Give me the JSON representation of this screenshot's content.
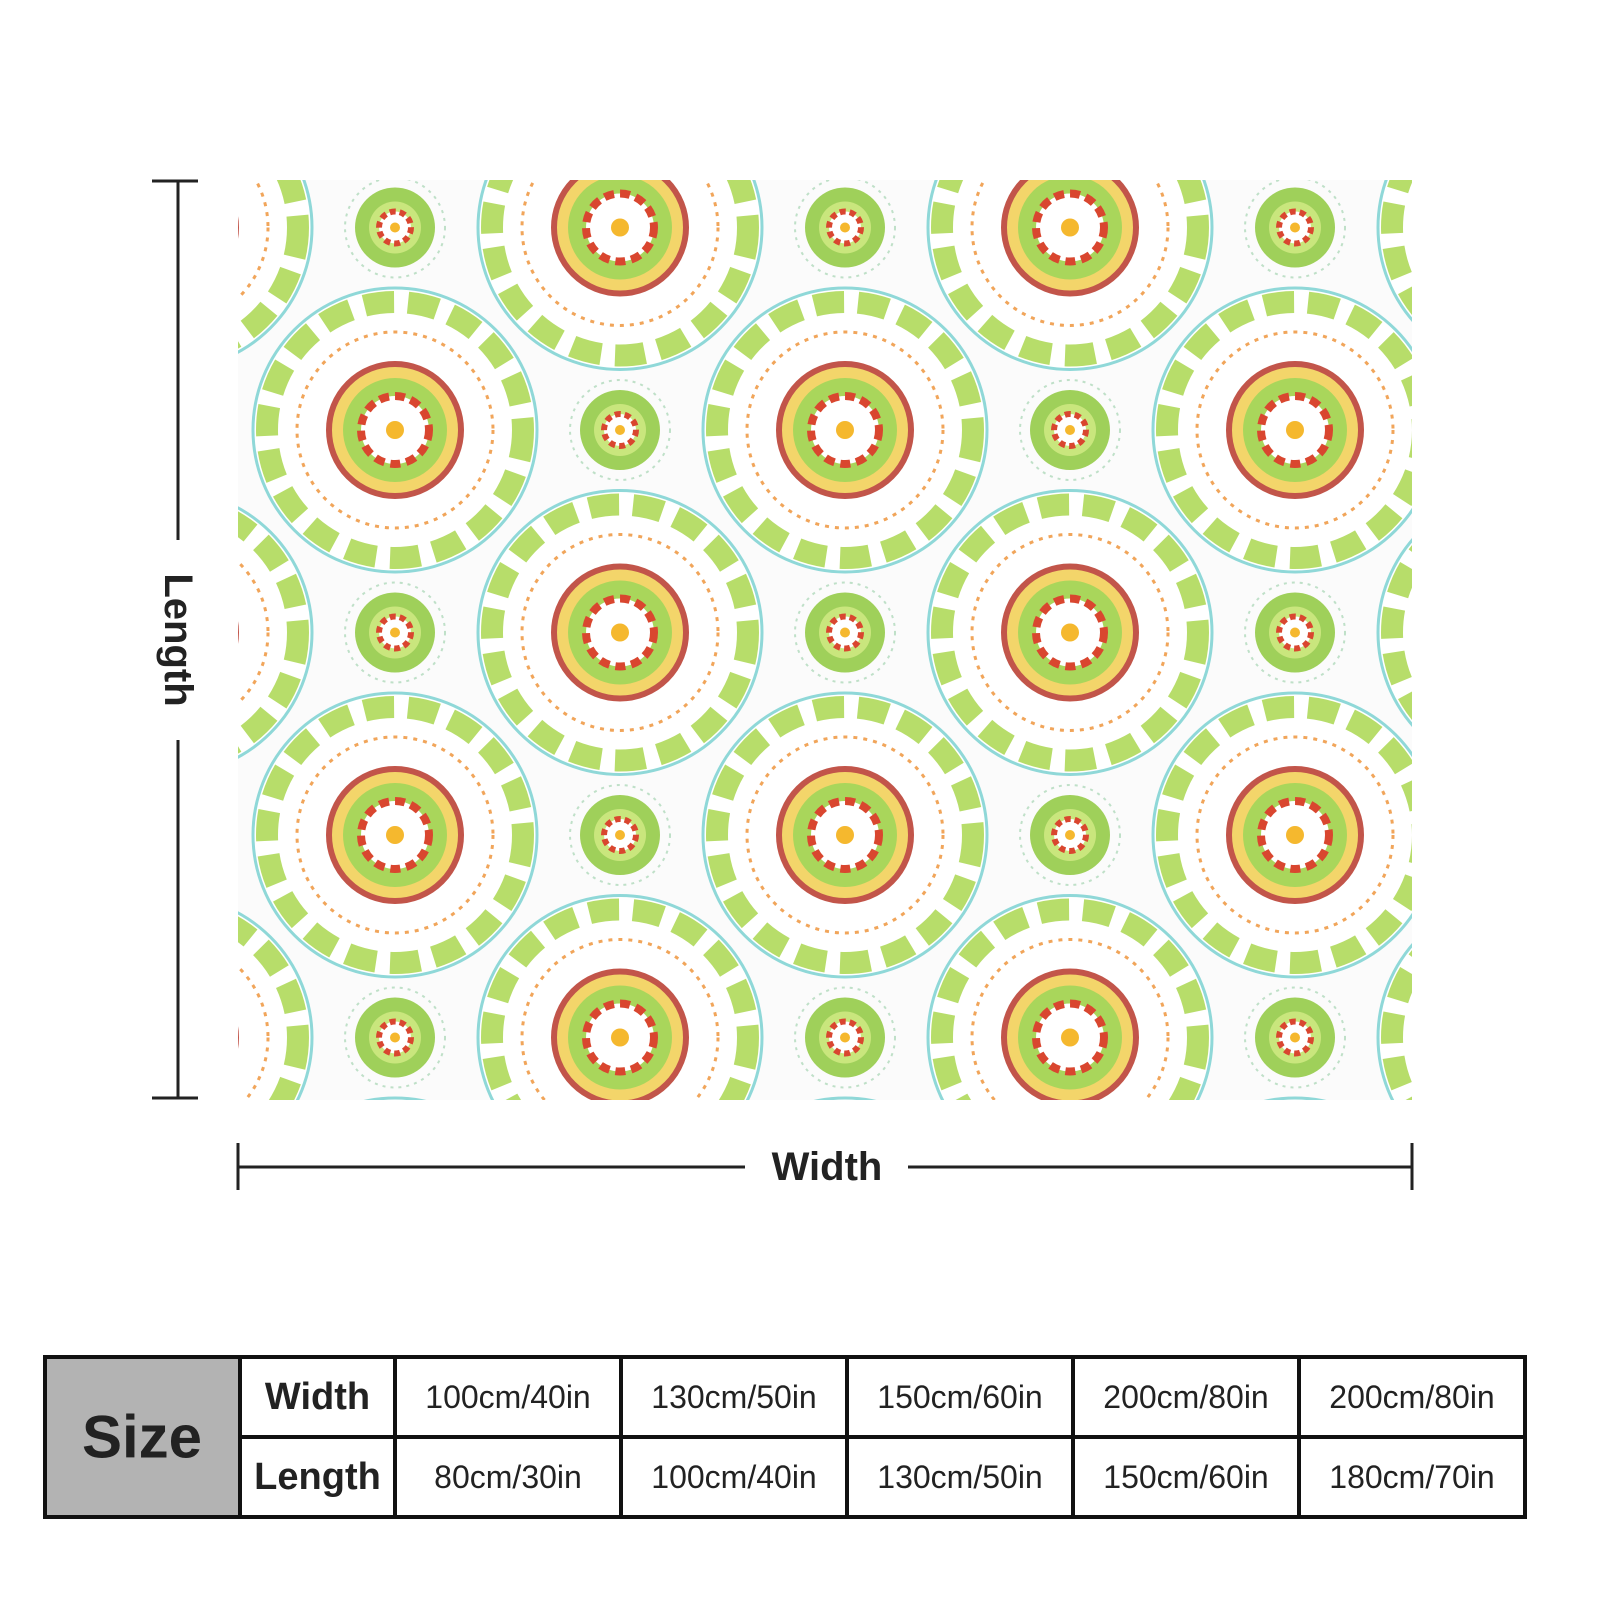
{
  "dimensions": {
    "length": "Length",
    "width": "Width"
  },
  "size_table": {
    "title": "Size",
    "rows": [
      {
        "label": "Width",
        "cells": [
          "100cm/40in",
          "130cm/50in",
          "150cm/60in",
          "200cm/80in",
          "200cm/80in"
        ]
      },
      {
        "label": "Length",
        "cells": [
          "80cm/30in",
          "100cm/40in",
          "130cm/50in",
          "150cm/60in",
          "180cm/70in"
        ]
      }
    ]
  }
}
